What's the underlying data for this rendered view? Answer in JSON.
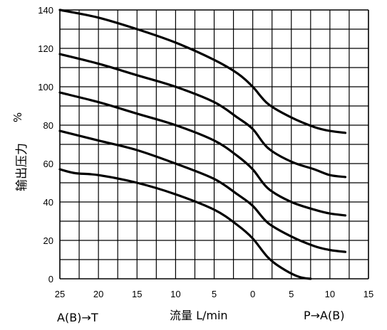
{
  "chart_data": {
    "type": "line",
    "xlabel": "流量 L/min",
    "ylabel": "输出压力",
    "ylabel_unit": "%",
    "left_direction_label": "A(B)→T",
    "right_direction_label": "P→A(B)",
    "x_ticks": [
      "25",
      "20",
      "15",
      "10",
      "5",
      "0",
      "5",
      "10",
      "15"
    ],
    "y_ticks": [
      "0",
      "20",
      "40",
      "60",
      "80",
      "100",
      "120",
      "140"
    ],
    "xlim": [
      -25,
      15
    ],
    "ylim": [
      0,
      140
    ],
    "grid": true,
    "series": [
      {
        "x": [
          -25,
          -20,
          -15,
          -10,
          -5,
          -2,
          0,
          2,
          5,
          8,
          10,
          12
        ],
        "y": [
          140,
          136,
          130,
          123,
          114,
          107,
          100,
          91,
          84,
          79,
          77,
          76
        ]
      },
      {
        "x": [
          -25,
          -20,
          -15,
          -10,
          -5,
          -2,
          0,
          2,
          5,
          8,
          10,
          12
        ],
        "y": [
          117,
          112,
          106,
          100,
          92,
          84,
          78,
          68,
          61,
          57,
          54,
          53
        ]
      },
      {
        "x": [
          -25,
          -20,
          -15,
          -10,
          -5,
          -2,
          0,
          2,
          5,
          8,
          10,
          12
        ],
        "y": [
          97,
          92,
          86,
          80,
          72,
          64,
          57,
          47,
          40,
          36,
          34,
          33
        ]
      },
      {
        "x": [
          -25,
          -20,
          -15,
          -10,
          -5,
          -2,
          0,
          2,
          5,
          8,
          10,
          12
        ],
        "y": [
          77,
          72,
          67,
          60,
          52,
          44,
          38,
          29,
          22,
          17,
          15,
          14
        ]
      },
      {
        "x": [
          -25,
          -23,
          -20,
          -15,
          -10,
          -5,
          -2,
          0,
          2,
          4,
          6,
          7.5
        ],
        "y": [
          57,
          55,
          54,
          50,
          44,
          36,
          28,
          21,
          11,
          5,
          1,
          0
        ]
      }
    ]
  }
}
